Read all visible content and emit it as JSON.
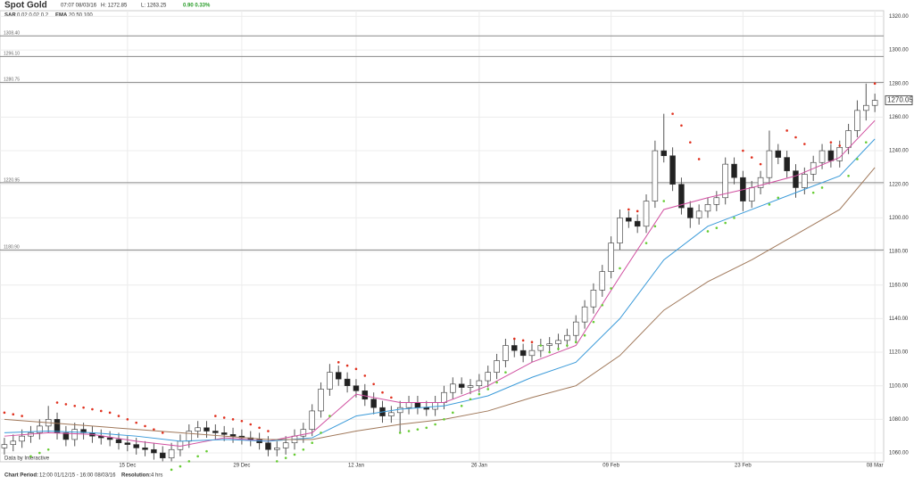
{
  "header": {
    "title": "Spot Gold",
    "time": "07:07 08/03/16",
    "high": "H: 1272.85",
    "low": "L: 1263.25",
    "change": "0.90 0.33%",
    "sar_label": "SAR",
    "sar_params": "0.02 0.02 0.2",
    "ema_label": "EMA",
    "ema_params": "20 50 100"
  },
  "footer": {
    "period_label": "Chart Period:",
    "period": "12:00 01/12/15 - 16:00 08/03/16",
    "resolution_label": "Resolution:",
    "resolution": "4 hrs",
    "credit": "Data by Interactive"
  },
  "chart_data": {
    "type": "candlestick",
    "up_color": "#ffffff",
    "down_color": "#222222",
    "wick_color": "#555555",
    "grid": true,
    "xlim": [
      -0.5,
      100
    ],
    "xticks": [
      {
        "value": 14,
        "label": "15 Dec"
      },
      {
        "value": 27,
        "label": "29 Dec"
      },
      {
        "value": 40,
        "label": "12 Jan"
      },
      {
        "value": 54,
        "label": "26 Jan"
      },
      {
        "value": 69,
        "label": "09 Feb"
      },
      {
        "value": 84,
        "label": "23 Feb"
      },
      {
        "value": 99,
        "label": "08 Mar"
      }
    ],
    "ylim": [
      1054.7,
      1323.4
    ],
    "yticks": [
      {
        "value": 1060,
        "label": "1060.00"
      },
      {
        "value": 1080,
        "label": "1080.00"
      },
      {
        "value": 1100,
        "label": "1100.00"
      },
      {
        "value": 1120,
        "label": "1120.00"
      },
      {
        "value": 1140,
        "label": "1140.00"
      },
      {
        "value": 1160,
        "label": "1160.00"
      },
      {
        "value": 1180,
        "label": "1180.00"
      },
      {
        "value": 1200,
        "label": "1200.00"
      },
      {
        "value": 1220,
        "label": "1220.00"
      },
      {
        "value": 1240,
        "label": "1240.00"
      },
      {
        "value": 1260,
        "label": "1260.00"
      },
      {
        "value": 1280,
        "label": "1280.00"
      },
      {
        "value": 1300,
        "label": "1300.00"
      },
      {
        "value": 1320,
        "label": "1320.00"
      }
    ],
    "levels": [
      {
        "value": 1308.4,
        "label": "1308.40"
      },
      {
        "value": 1296.1,
        "label": "1296.10"
      },
      {
        "value": 1280.75,
        "label": "1280.75"
      },
      {
        "value": 1220.95,
        "label": "1220.95"
      },
      {
        "value": 1180.9,
        "label": "1180.90"
      }
    ],
    "last_price": 1270.05,
    "open": [
      1063,
      1065,
      1067,
      1070,
      1072,
      1076,
      1080,
      1072,
      1068,
      1074,
      1072,
      1070,
      1069,
      1068,
      1066,
      1065,
      1063,
      1062,
      1060,
      1057,
      1062,
      1067,
      1073,
      1075,
      1073,
      1072,
      1071,
      1070,
      1069,
      1068,
      1066,
      1062,
      1063,
      1066,
      1070,
      1074,
      1085,
      1098,
      1108,
      1104,
      1100,
      1097,
      1092,
      1087,
      1082,
      1084,
      1087,
      1090,
      1087,
      1086,
      1090,
      1096,
      1101,
      1099,
      1100,
      1103,
      1108,
      1115,
      1124,
      1121,
      1118,
      1121,
      1124,
      1125,
      1127,
      1130,
      1138,
      1147,
      1157,
      1168,
      1185,
      1200,
      1198,
      1195,
      1210,
      1240,
      1237,
      1220,
      1206,
      1200,
      1204,
      1208,
      1212,
      1232,
      1224,
      1210,
      1218,
      1224,
      1240,
      1236,
      1228,
      1218,
      1226,
      1233,
      1240,
      1234,
      1242,
      1252,
      1264,
      1267
    ],
    "high": [
      1069,
      1071,
      1074,
      1076,
      1080,
      1088,
      1084,
      1076,
      1078,
      1078,
      1076,
      1074,
      1073,
      1072,
      1070,
      1069,
      1067,
      1066,
      1064,
      1066,
      1071,
      1077,
      1079,
      1079,
      1077,
      1076,
      1075,
      1074,
      1073,
      1072,
      1070,
      1067,
      1070,
      1074,
      1078,
      1089,
      1102,
      1113,
      1112,
      1108,
      1104,
      1101,
      1096,
      1091,
      1088,
      1091,
      1094,
      1094,
      1091,
      1094,
      1100,
      1105,
      1105,
      1104,
      1107,
      1112,
      1119,
      1128,
      1128,
      1125,
      1125,
      1128,
      1129,
      1131,
      1134,
      1142,
      1151,
      1161,
      1172,
      1189,
      1205,
      1204,
      1202,
      1214,
      1246,
      1262,
      1242,
      1224,
      1210,
      1208,
      1212,
      1216,
      1236,
      1236,
      1228,
      1222,
      1228,
      1252,
      1244,
      1240,
      1232,
      1230,
      1237,
      1244,
      1244,
      1246,
      1256,
      1270,
      1280,
      1274
    ],
    "low": [
      1059,
      1061,
      1063,
      1066,
      1068,
      1072,
      1068,
      1064,
      1064,
      1068,
      1066,
      1065,
      1064,
      1062,
      1061,
      1059,
      1058,
      1056,
      1055,
      1055,
      1058,
      1063,
      1069,
      1069,
      1068,
      1067,
      1066,
      1065,
      1064,
      1062,
      1058,
      1058,
      1059,
      1062,
      1066,
      1070,
      1081,
      1094,
      1100,
      1096,
      1093,
      1088,
      1083,
      1078,
      1078,
      1072,
      1083,
      1083,
      1082,
      1082,
      1086,
      1092,
      1095,
      1095,
      1096,
      1099,
      1104,
      1111,
      1117,
      1114,
      1114,
      1117,
      1120,
      1121,
      1123,
      1126,
      1134,
      1143,
      1153,
      1164,
      1181,
      1194,
      1191,
      1191,
      1206,
      1233,
      1216,
      1202,
      1194,
      1196,
      1200,
      1204,
      1208,
      1220,
      1204,
      1206,
      1214,
      1220,
      1232,
      1224,
      1212,
      1214,
      1222,
      1229,
      1230,
      1230,
      1238,
      1248,
      1258,
      1263
    ],
    "close": [
      1065,
      1067,
      1070,
      1072,
      1076,
      1080,
      1072,
      1068,
      1074,
      1072,
      1070,
      1069,
      1068,
      1066,
      1065,
      1063,
      1062,
      1060,
      1057,
      1062,
      1067,
      1073,
      1075,
      1073,
      1072,
      1071,
      1070,
      1069,
      1068,
      1066,
      1062,
      1063,
      1066,
      1070,
      1074,
      1085,
      1098,
      1108,
      1104,
      1100,
      1097,
      1092,
      1087,
      1082,
      1084,
      1087,
      1090,
      1087,
      1086,
      1090,
      1096,
      1101,
      1099,
      1100,
      1103,
      1108,
      1115,
      1124,
      1121,
      1118,
      1121,
      1124,
      1125,
      1127,
      1130,
      1138,
      1147,
      1157,
      1168,
      1185,
      1200,
      1198,
      1195,
      1210,
      1240,
      1237,
      1220,
      1206,
      1200,
      1204,
      1208,
      1212,
      1232,
      1224,
      1210,
      1218,
      1224,
      1240,
      1236,
      1228,
      1218,
      1226,
      1233,
      1240,
      1234,
      1242,
      1252,
      1264,
      1267,
      1270
    ],
    "sar": {
      "up_color": "#66cc33",
      "down_color": "#e0301e",
      "values": [
        1084,
        1083,
        1082,
        1058,
        1060,
        1062,
        1090,
        1089,
        1088,
        1087,
        1086,
        1085,
        1084,
        1082,
        1080,
        1078,
        1076,
        1074,
        1072,
        1050,
        1052,
        1055,
        1058,
        1061,
        1082,
        1081,
        1080,
        1079,
        1077,
        1075,
        1073,
        1055,
        1057,
        1059,
        1062,
        1066,
        1072,
        1082,
        1114,
        1112,
        1110,
        1106,
        1101,
        1096,
        1093,
        1072,
        1073,
        1074,
        1075,
        1077,
        1080,
        1084,
        1088,
        1092,
        1095,
        1098,
        1102,
        1108,
        1128,
        1127,
        1126,
        1124,
        1120,
        1122,
        1124,
        1126,
        1130,
        1138,
        1148,
        1158,
        1170,
        1205,
        1204,
        1185,
        1195,
        1210,
        1262,
        1255,
        1245,
        1235,
        1192,
        1194,
        1197,
        1200,
        1240,
        1236,
        1232,
        1208,
        1212,
        1252,
        1248,
        1244,
        1215,
        1218,
        1245,
        1243,
        1225,
        1235,
        1245,
        1280
      ]
    },
    "series": [
      {
        "name": "EMA 20",
        "color": "#d04fa0",
        "x": [
          0,
          5,
          10,
          15,
          20,
          25,
          30,
          35,
          40,
          45,
          50,
          55,
          60,
          65,
          70,
          75,
          80,
          85,
          90,
          95,
          99
        ],
        "values": [
          1070,
          1072,
          1071,
          1067,
          1064,
          1069,
          1067,
          1072,
          1095,
          1090,
          1090,
          1100,
          1114,
          1124,
          1165,
          1205,
          1212,
          1218,
          1225,
          1236,
          1258
        ]
      },
      {
        "name": "EMA 50",
        "color": "#3a9ad9",
        "x": [
          0,
          5,
          10,
          15,
          20,
          25,
          30,
          35,
          40,
          45,
          50,
          55,
          60,
          65,
          70,
          75,
          80,
          85,
          90,
          95,
          99
        ],
        "values": [
          1072,
          1073,
          1072,
          1070,
          1067,
          1068,
          1067,
          1069,
          1082,
          1086,
          1088,
          1094,
          1105,
          1114,
          1140,
          1175,
          1195,
          1205,
          1215,
          1225,
          1247
        ]
      },
      {
        "name": "EMA 100",
        "color": "#a0785a",
        "x": [
          0,
          5,
          10,
          15,
          20,
          25,
          30,
          35,
          40,
          45,
          50,
          55,
          60,
          65,
          70,
          75,
          80,
          85,
          90,
          95,
          99
        ],
        "values": [
          1080,
          1078,
          1076,
          1074,
          1072,
          1070,
          1068,
          1068,
          1073,
          1077,
          1080,
          1085,
          1093,
          1100,
          1118,
          1145,
          1162,
          1175,
          1190,
          1205,
          1230
        ]
      }
    ]
  }
}
